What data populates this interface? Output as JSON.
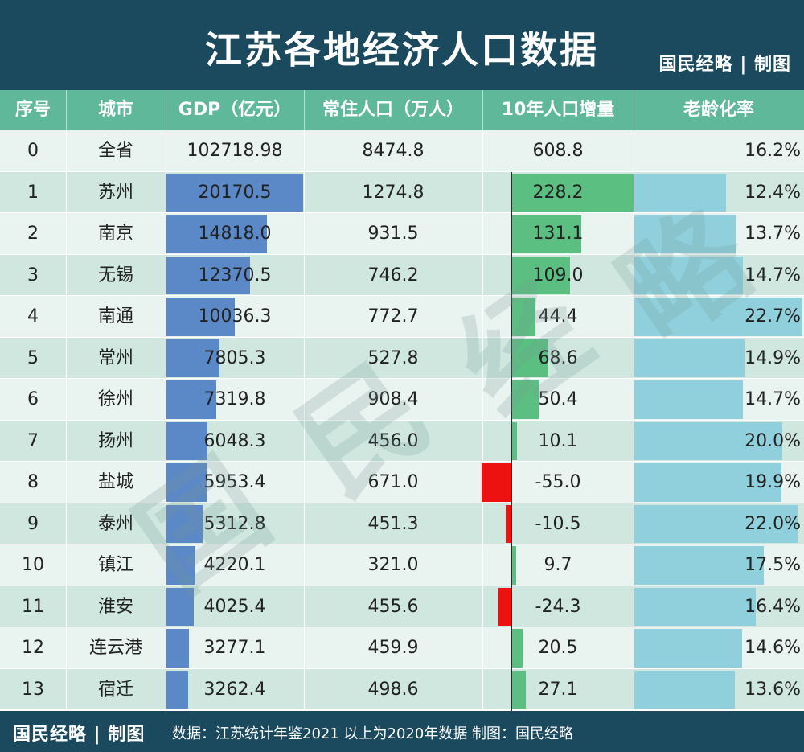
{
  "header": {
    "title": "江苏各地经济人口数据",
    "brand": "国民经略 | 制图"
  },
  "columns": {
    "seq": "序号",
    "city": "城市",
    "gdp": "GDP（亿元）",
    "pop": "常住人口（万人）",
    "growth": "10年人口增量",
    "aging": "老龄化率"
  },
  "rows": [
    {
      "seq": "0",
      "city": "全省",
      "gdp": "102718.98",
      "pop": "8474.8",
      "growth": "608.8",
      "aging": "16.2%"
    },
    {
      "seq": "1",
      "city": "苏州",
      "gdp": "20170.5",
      "pop": "1274.8",
      "growth": "228.2",
      "aging": "12.4%"
    },
    {
      "seq": "2",
      "city": "南京",
      "gdp": "14818.0",
      "pop": "931.5",
      "growth": "131.1",
      "aging": "13.7%"
    },
    {
      "seq": "3",
      "city": "无锡",
      "gdp": "12370.5",
      "pop": "746.2",
      "growth": "109.0",
      "aging": "14.7%"
    },
    {
      "seq": "4",
      "city": "南通",
      "gdp": "10036.3",
      "pop": "772.7",
      "growth": "44.4",
      "aging": "22.7%"
    },
    {
      "seq": "5",
      "city": "常州",
      "gdp": "7805.3",
      "pop": "527.8",
      "growth": "68.6",
      "aging": "14.9%"
    },
    {
      "seq": "6",
      "city": "徐州",
      "gdp": "7319.8",
      "pop": "908.4",
      "growth": "50.4",
      "aging": "14.7%"
    },
    {
      "seq": "7",
      "city": "扬州",
      "gdp": "6048.3",
      "pop": "456.0",
      "growth": "10.1",
      "aging": "20.0%"
    },
    {
      "seq": "8",
      "city": "盐城",
      "gdp": "5953.4",
      "pop": "671.0",
      "growth": "-55.0",
      "aging": "19.9%"
    },
    {
      "seq": "9",
      "city": "泰州",
      "gdp": "5312.8",
      "pop": "451.3",
      "growth": "-10.5",
      "aging": "22.0%"
    },
    {
      "seq": "10",
      "city": "镇江",
      "gdp": "4220.1",
      "pop": "321.0",
      "growth": "9.7",
      "aging": "17.5%"
    },
    {
      "seq": "11",
      "city": "淮安",
      "gdp": "4025.4",
      "pop": "455.6",
      "growth": "-24.3",
      "aging": "16.4%"
    },
    {
      "seq": "12",
      "city": "连云港",
      "gdp": "3277.1",
      "pop": "459.9",
      "growth": "20.5",
      "aging": "14.6%"
    },
    {
      "seq": "13",
      "city": "宿迁",
      "gdp": "3262.4",
      "pop": "498.6",
      "growth": "27.1",
      "aging": "13.6%"
    }
  ],
  "watermark": "国民经略",
  "footer": {
    "brand": "国民经略 | 制图",
    "source": "数据：江苏统计年鉴2021  以上为2020年数据  制图：国民经略"
  },
  "colors": {
    "header_bg": "#1b4a5e",
    "column_header_bg": "#5fb89a",
    "gdp_bar": "#5b88c6",
    "growth_positive_bar": "#5cbf82",
    "growth_negative_bar": "#ee1111",
    "aging_bar": "#8fd0dc"
  },
  "chart_data": {
    "type": "table",
    "title": "江苏各地经济人口数据",
    "columns": [
      "序号",
      "城市",
      "GDP（亿元）",
      "常住人口（万人）",
      "10年人口增量",
      "老龄化率"
    ],
    "categories": [
      "全省",
      "苏州",
      "南京",
      "无锡",
      "南通",
      "常州",
      "徐州",
      "扬州",
      "盐城",
      "泰州",
      "镇江",
      "淮安",
      "连云港",
      "宿迁"
    ],
    "series": [
      {
        "name": "GDP（亿元）",
        "values": [
          102718.98,
          20170.5,
          14818.0,
          12370.5,
          10036.3,
          7805.3,
          7319.8,
          6048.3,
          5953.4,
          5312.8,
          4220.1,
          4025.4,
          3277.1,
          3262.4
        ]
      },
      {
        "name": "常住人口（万人）",
        "values": [
          8474.8,
          1274.8,
          931.5,
          746.2,
          772.7,
          527.8,
          908.4,
          456.0,
          671.0,
          451.3,
          321.0,
          455.6,
          459.9,
          498.6
        ]
      },
      {
        "name": "10年人口增量",
        "values": [
          608.8,
          228.2,
          131.1,
          109.0,
          44.4,
          68.6,
          50.4,
          10.1,
          -55.0,
          -10.5,
          9.7,
          -24.3,
          20.5,
          27.1
        ]
      },
      {
        "name": "老龄化率",
        "values": [
          16.2,
          12.4,
          13.7,
          14.7,
          22.7,
          14.9,
          14.7,
          20.0,
          19.9,
          22.0,
          17.5,
          16.4,
          14.6,
          13.6
        ]
      }
    ]
  }
}
